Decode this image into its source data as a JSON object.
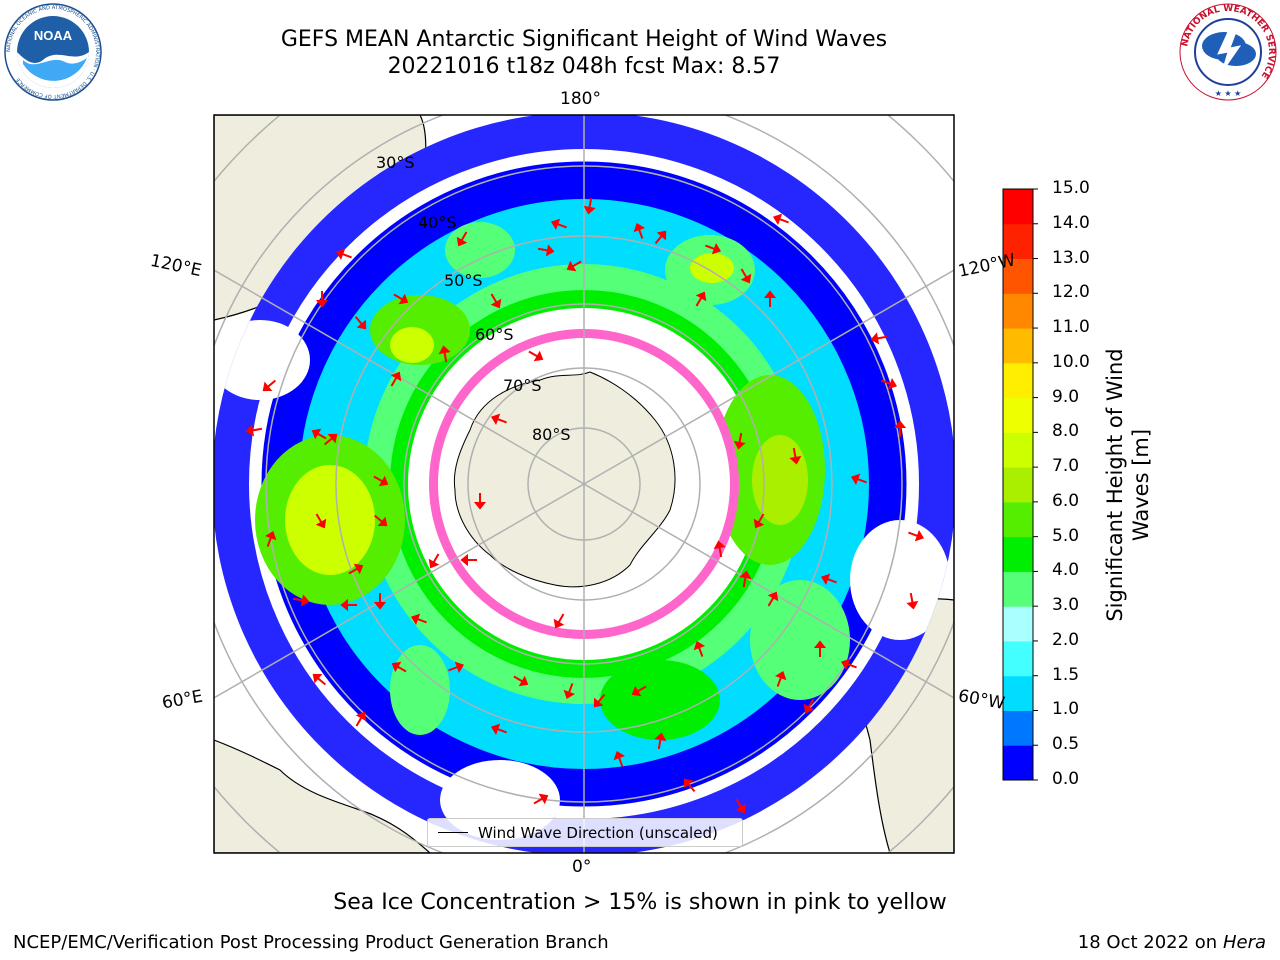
{
  "header": {
    "title_line1": "GEFS MEAN Antarctic Significant Height of Wind Waves",
    "title_line2": "20221016 t18z 048h fcst   Max: 8.57"
  },
  "logos": {
    "left": "NOAA",
    "left_ring_text": "NATIONAL OCEANIC AND ATMOSPHERIC ADMINISTRATION · U.S. DEPARTMENT OF COMMERCE",
    "right_ring_text": "NATIONAL WEATHER SERVICE"
  },
  "map": {
    "projection": "south polar stereographic",
    "lon_labels": {
      "top": "180°",
      "left_upper": "120°E",
      "left_lower": "60°E",
      "right_upper": "120°W",
      "right_lower": "60°W",
      "bottom": "0°"
    },
    "lat_labels": [
      "30°S",
      "40°S",
      "50°S",
      "60°S",
      "70°S",
      "80°S"
    ],
    "legend_label": "Wind Wave Direction (unscaled)",
    "colors": {
      "land": "#efedde",
      "ocean_calm": "#ffffff",
      "grid": "#b0b0b0",
      "arrow": "#ff0000",
      "sea_ice": "#ff66cc"
    }
  },
  "colorbar": {
    "label": "Significant Height of Wind Waves [m]",
    "ticks": [
      "0.0",
      "0.5",
      "1.0",
      "1.5",
      "2.0",
      "3.0",
      "4.0",
      "5.0",
      "6.0",
      "7.0",
      "8.0",
      "9.0",
      "10.0",
      "11.0",
      "12.0",
      "13.0",
      "14.0",
      "15.0"
    ],
    "colors": [
      "#0000ff",
      "#0077ff",
      "#00ddff",
      "#44ffff",
      "#aaffff",
      "#55ff77",
      "#00ee00",
      "#55ee00",
      "#aaee00",
      "#ccff00",
      "#eeff00",
      "#ffee00",
      "#ffbb00",
      "#ff8800",
      "#ff5500",
      "#ff2200",
      "#ff0000"
    ]
  },
  "subtitle": "Sea Ice Concentration > 15% is shown in pink to yellow",
  "footer": {
    "left": "NCEP/EMC/Verification Post Processing Product Generation Branch",
    "right_prefix": "18 Oct 2022 on ",
    "right_system": "Hera"
  }
}
